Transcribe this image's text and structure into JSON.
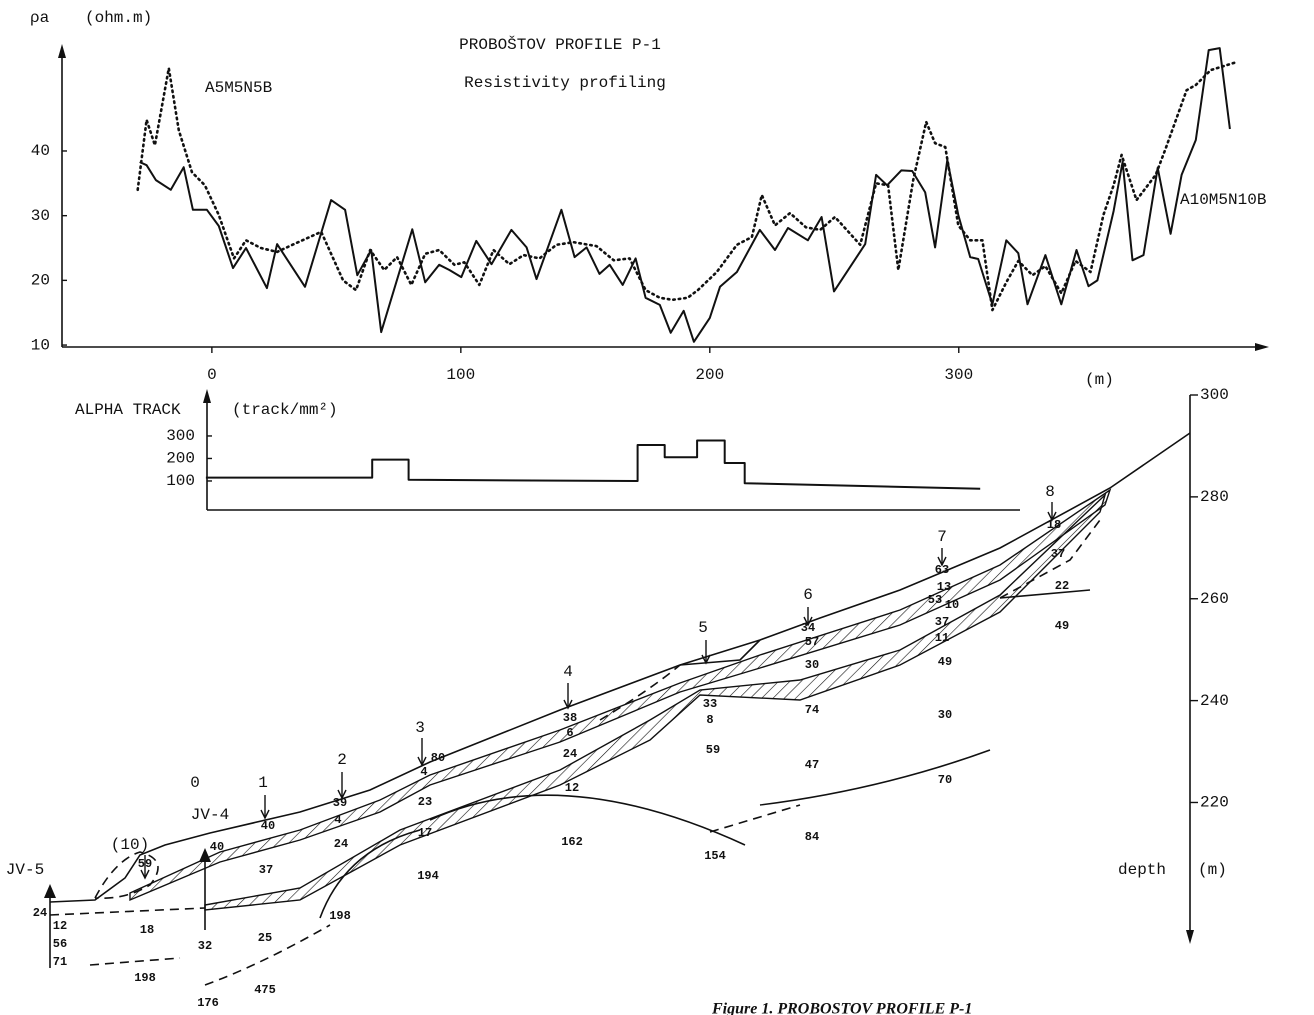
{
  "chart_data": [
    {
      "type": "line",
      "title": "PROBOŠTOV PROFILE P-1",
      "subtitle": "Resistivity profiling",
      "y_label": "ρa",
      "y_unit": "(ohm.m)",
      "x_label": "(m)",
      "xlim": [
        -61,
        423
      ],
      "xticks": [
        0,
        100,
        200,
        300
      ],
      "ylim": [
        9.7,
        57
      ],
      "yticks": [
        10,
        20,
        30,
        40
      ],
      "series": [
        {
          "name": "A5M5N5B",
          "color": "#111111",
          "line_style": "solid",
          "x": [
            -29.0,
            -26.2,
            -22.5,
            -16.5,
            -11.3,
            -7.6,
            -2.0,
            2.8,
            8.5,
            13.7,
            22.1,
            26.2,
            31.0,
            37.4,
            47.9,
            53.5,
            58.4,
            64.0,
            68.0,
            80.5,
            85.7,
            91.3,
            95.4,
            100.2,
            106.2,
            112.3,
            120.3,
            126.4,
            130.4,
            140.4,
            145.7,
            150.5,
            155.7,
            159.8,
            165.0,
            170.2,
            174.2,
            179.9,
            184.3,
            189.5,
            193.6,
            200.0,
            204.1,
            210.9,
            220.1,
            226.2,
            231.4,
            239.4,
            244.9,
            249.9,
            262.4,
            266.8,
            271.2,
            276.9,
            281.3,
            286.5,
            290.5,
            295.4,
            299.8,
            304.6,
            307.8,
            313.5,
            319.1,
            323.9,
            327.6,
            334.8,
            341.2,
            347.3,
            352.1,
            355.7,
            362.2,
            365.8,
            369.8,
            374.2,
            379.9,
            385.1,
            389.5,
            395.2,
            400.4,
            404.8,
            408.9
          ],
          "values": [
            38.3,
            37.8,
            35.5,
            34.0,
            37.5,
            30.9,
            30.9,
            28.4,
            21.9,
            25.0,
            18.8,
            25.6,
            22.8,
            19.0,
            32.4,
            30.9,
            20.8,
            24.7,
            12.0,
            27.9,
            19.7,
            22.4,
            21.6,
            20.5,
            26.1,
            22.5,
            27.8,
            25.1,
            20.2,
            30.9,
            23.6,
            25.1,
            21.0,
            22.4,
            19.3,
            23.4,
            17.3,
            16.2,
            11.9,
            15.3,
            10.5,
            14.2,
            19.0,
            21.3,
            27.8,
            24.7,
            28.1,
            26.2,
            29.8,
            18.3,
            25.6,
            36.3,
            34.7,
            37.0,
            36.9,
            33.6,
            25.1,
            38.6,
            30.1,
            23.6,
            23.3,
            16.3,
            26.2,
            24.2,
            16.3,
            23.9,
            16.3,
            24.7,
            19.1,
            20.0,
            30.7,
            38.3,
            23.1,
            23.9,
            37.4,
            27.2,
            36.3,
            41.7,
            55.6,
            55.9,
            43.4
          ]
        },
        {
          "name": "A10M5N10B",
          "color": "#111111",
          "line_style": "dotted",
          "x": [
            -29.8,
            -26.2,
            -22.9,
            -17.3,
            -13.3,
            -8.0,
            -2.8,
            2.8,
            8.9,
            13.7,
            19.7,
            26.2,
            33.0,
            43.9,
            52.7,
            57.9,
            63.6,
            69.2,
            74.4,
            80.1,
            85.7,
            91.3,
            97.4,
            101.4,
            107.4,
            113.1,
            119.5,
            125.2,
            131.6,
            138.4,
            145.3,
            154.5,
            161.4,
            167.8,
            174.2,
            179.9,
            185.1,
            191.1,
            195.2,
            202.8,
            210.9,
            216.9,
            220.9,
            226.2,
            232.2,
            238.6,
            244.3,
            250.3,
            260.4,
            266.8,
            271.6,
            275.7,
            281.7,
            286.9,
            290.5,
            294.6,
            299.8,
            304.6,
            309.5,
            313.5,
            319.1,
            323.9,
            329.6,
            334.8,
            341.2,
            346.9,
            352.9,
            358.1,
            362.2,
            365.4,
            371.4,
            379.1,
            383.1,
            391.5,
            395.2,
            401.2,
            411.3
          ],
          "values": [
            34.0,
            44.8,
            40.9,
            52.8,
            43.2,
            36.7,
            34.7,
            30.1,
            23.4,
            26.2,
            25.0,
            24.4,
            25.6,
            27.5,
            20.0,
            18.5,
            24.7,
            21.6,
            23.6,
            19.3,
            24.1,
            24.7,
            22.4,
            22.8,
            19.3,
            24.7,
            22.5,
            23.9,
            23.4,
            25.5,
            25.9,
            25.3,
            23.1,
            23.4,
            18.5,
            17.3,
            17.0,
            17.3,
            18.5,
            21.3,
            25.5,
            26.7,
            33.2,
            28.5,
            30.4,
            28.2,
            27.8,
            29.8,
            25.5,
            35.0,
            34.7,
            21.6,
            35.5,
            44.5,
            41.2,
            40.6,
            28.5,
            26.2,
            26.2,
            15.4,
            19.7,
            23.0,
            20.8,
            22.2,
            18.0,
            23.0,
            21.3,
            30.1,
            34.7,
            39.4,
            32.4,
            36.3,
            40.4,
            49.4,
            50.2,
            52.5,
            53.7
          ]
        }
      ]
    },
    {
      "type": "line",
      "y_label": "ALPHA TRACK",
      "y_unit": "(track/mm²)",
      "xlim": [
        -61,
        423
      ],
      "ylim": [
        -29,
        482
      ],
      "yticks": [
        100,
        200,
        300
      ],
      "series": [
        {
          "color": "#111111",
          "line_style": "solid",
          "x": [
            -2.4,
            64.4,
            64.4,
            79,
            79,
            171,
            171,
            181.9,
            181.9,
            194.9,
            194.9,
            206,
            206,
            214,
            214,
            308.6
          ],
          "values": [
            115,
            115,
            195,
            195,
            105,
            100,
            260,
            260,
            205,
            205,
            280,
            280,
            180,
            180,
            90,
            65
          ]
        }
      ]
    },
    {
      "type": "section",
      "y_label": "depth",
      "y_unit": "(m)",
      "ylim": [
        193,
        300
      ],
      "yticks": [
        300,
        280,
        260,
        240,
        220
      ],
      "points": [
        "(10)",
        "0",
        "1",
        "2",
        "3",
        "4",
        "5",
        "6",
        "7",
        "8"
      ],
      "boreholes": [
        "JV-5",
        "JV-4"
      ],
      "labels": [
        "59",
        "40",
        "40",
        "39",
        "4",
        "24",
        "37",
        "18",
        "32",
        "25",
        "198",
        "475",
        "176",
        "198",
        "24",
        "12",
        "56",
        "71",
        "80",
        "4",
        "23",
        "17",
        "194",
        "38",
        "6",
        "24",
        "12",
        "162",
        "33",
        "8",
        "59",
        "154",
        "34",
        "57",
        "30",
        "74",
        "47",
        "84",
        "63",
        "13",
        "53",
        "10",
        "37",
        "11",
        "49",
        "30",
        "70",
        "18",
        "37",
        "22",
        "49"
      ]
    }
  ],
  "caption": "Figure 1. PROBOSTOV PROFILE P-1"
}
